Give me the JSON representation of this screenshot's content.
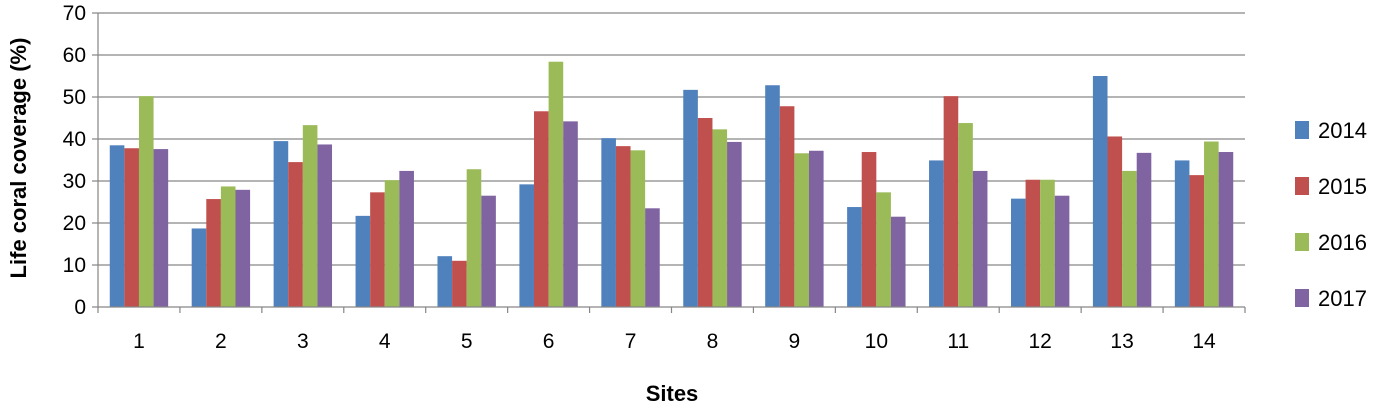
{
  "chart_data": {
    "type": "bar",
    "xlabel": "Sites",
    "ylabel": "Life coral coverage (%)",
    "ylim": [
      0,
      70
    ],
    "yticks": [
      0,
      10,
      20,
      30,
      40,
      50,
      60,
      70
    ],
    "grid": true,
    "legend_position": "right",
    "categories": [
      "1",
      "2",
      "3",
      "4",
      "5",
      "6",
      "7",
      "8",
      "9",
      "10",
      "11",
      "12",
      "13",
      "14"
    ],
    "series": [
      {
        "name": "2014",
        "color": "#4F81BD",
        "values": [
          38.5,
          18.7,
          39.5,
          21.7,
          12.1,
          29.2,
          40.2,
          51.7,
          52.8,
          23.8,
          34.9,
          25.8,
          55.0,
          34.9
        ]
      },
      {
        "name": "2015",
        "color": "#C0504D",
        "values": [
          37.8,
          25.7,
          34.5,
          27.3,
          11.0,
          46.6,
          38.3,
          45.0,
          47.8,
          36.9,
          50.2,
          30.3,
          40.6,
          31.4
        ]
      },
      {
        "name": "2016",
        "color": "#9BBB59",
        "values": [
          50.2,
          28.7,
          43.3,
          30.2,
          32.8,
          58.4,
          37.3,
          42.3,
          36.6,
          27.3,
          43.8,
          30.3,
          32.4,
          39.4
        ]
      },
      {
        "name": "2017",
        "color": "#8064A2",
        "values": [
          37.6,
          27.9,
          38.7,
          32.4,
          26.5,
          44.2,
          23.5,
          39.3,
          37.2,
          21.5,
          32.4,
          26.5,
          36.7,
          36.9
        ]
      }
    ]
  }
}
